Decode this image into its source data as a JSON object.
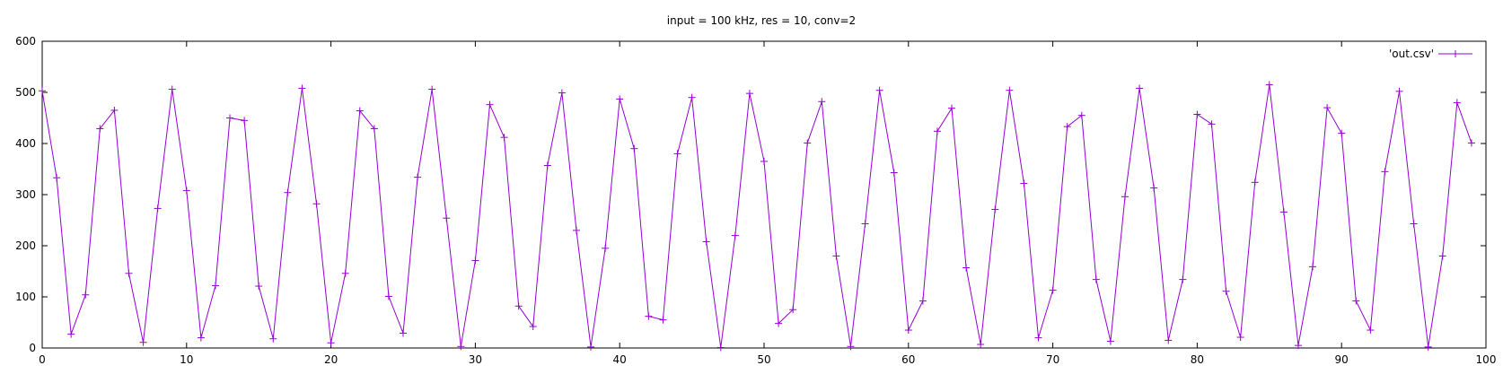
{
  "chart_data": {
    "type": "line",
    "title": "input = 100 kHz, res = 10, conv=2",
    "xlabel": "",
    "ylabel": "",
    "xlim": [
      0,
      100
    ],
    "ylim": [
      0,
      600
    ],
    "xticks": [
      0,
      10,
      20,
      30,
      40,
      50,
      60,
      70,
      80,
      90,
      100
    ],
    "yticks": [
      0,
      100,
      200,
      300,
      400,
      500,
      600
    ],
    "grid": false,
    "legend_position": "top-right",
    "series": [
      {
        "name": "'out.csv'",
        "color": "#9400d3",
        "marker": "plus",
        "x": [
          0,
          1,
          2,
          3,
          4,
          5,
          6,
          7,
          8,
          9,
          10,
          11,
          12,
          13,
          14,
          15,
          16,
          17,
          18,
          19,
          20,
          21,
          22,
          23,
          24,
          25,
          26,
          27,
          28,
          29,
          30,
          31,
          32,
          33,
          34,
          35,
          36,
          37,
          38,
          39,
          40,
          41,
          42,
          43,
          44,
          45,
          46,
          47,
          48,
          49,
          50,
          51,
          52,
          53,
          54,
          55,
          56,
          57,
          58,
          59,
          60,
          61,
          62,
          63,
          64,
          65,
          66,
          67,
          68,
          69,
          70,
          71,
          72,
          73,
          74,
          75,
          76,
          77,
          78,
          79,
          80,
          81,
          82,
          83,
          84,
          85,
          86,
          87,
          88,
          89,
          90,
          91,
          92,
          93,
          94,
          95,
          96,
          97,
          98,
          99
        ],
        "values": [
          503,
          333,
          27,
          104,
          429,
          465,
          146,
          11,
          273,
          506,
          308,
          20,
          122,
          450,
          445,
          121,
          18,
          304,
          508,
          282,
          10,
          146,
          464,
          429,
          101,
          29,
          334,
          506,
          254,
          3,
          171,
          476,
          412,
          82,
          42,
          357,
          499,
          230,
          2,
          195,
          487,
          390,
          62,
          55,
          380,
          490,
          208,
          1,
          220,
          498,
          365,
          48,
          75,
          401,
          482,
          180,
          3,
          243,
          504,
          343,
          35,
          92,
          424,
          469,
          157,
          7,
          271,
          504,
          322,
          20,
          113,
          433,
          455,
          134,
          13,
          296,
          508,
          313,
          15,
          134,
          457,
          438,
          111,
          21,
          324,
          515,
          266,
          5,
          159,
          470,
          420,
          92,
          35,
          345,
          502,
          243,
          2,
          180,
          480,
          401
        ]
      }
    ]
  }
}
